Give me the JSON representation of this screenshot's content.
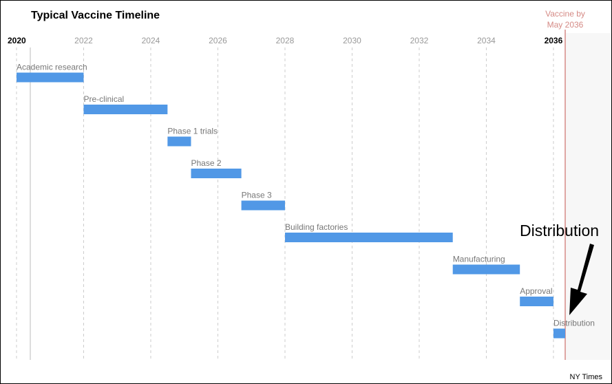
{
  "chart_data": {
    "type": "gantt",
    "title": "Typical Vaccine Timeline",
    "x_ticks": [
      "2020",
      "2022",
      "2024",
      "2026",
      "2028",
      "2030",
      "2032",
      "2034",
      "2036"
    ],
    "xlim": [
      2019.8,
      2037.2
    ],
    "tasks": [
      {
        "label": "Academic research",
        "start": 2020.0,
        "end": 2022.0
      },
      {
        "label": "Pre-clinical",
        "start": 2022.0,
        "end": 2024.5
      },
      {
        "label": "Phase 1 trials",
        "start": 2024.5,
        "end": 2025.2
      },
      {
        "label": "Phase 2",
        "start": 2025.2,
        "end": 2026.7
      },
      {
        "label": "Phase 3",
        "start": 2026.7,
        "end": 2028.0
      },
      {
        "label": "Building factories",
        "start": 2028.0,
        "end": 2033.0
      },
      {
        "label": "Manufacturing",
        "start": 2033.0,
        "end": 2035.0
      },
      {
        "label": "Approval",
        "start": 2035.0,
        "end": 2036.0
      },
      {
        "label": "Distribution",
        "start": 2036.0,
        "end": 2036.35
      }
    ],
    "marker": {
      "line1": "Vaccine by",
      "line2": "May 2036",
      "x": 2036.35
    },
    "annotation": "Distribution",
    "source": "NY Times",
    "colors": {
      "bar": "#5198e6",
      "marker": "#d58a85",
      "shade": "#f7f7f7",
      "grid": "#cccccc"
    }
  }
}
